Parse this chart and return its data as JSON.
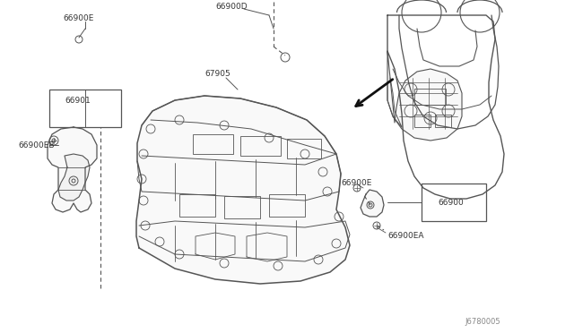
{
  "bg_color": "#ffffff",
  "line_color": "#555555",
  "label_color": "#333333",
  "fig_width": 6.4,
  "fig_height": 3.72,
  "dpi": 100,
  "labels": {
    "top_left_part": "66900E",
    "left_bracket": "66900EB",
    "left_main": "66901",
    "center_top": "66900D",
    "center_main": "67905",
    "bottom_right_screw1": "66900E",
    "bottom_right_screw2": "66900EA",
    "right_bracket": "66900",
    "diagram_code": "J6780005"
  }
}
